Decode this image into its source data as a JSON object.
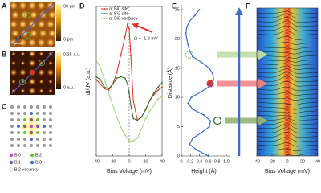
{
  "panel_labels": [
    "A",
    "B",
    "C",
    "D",
    "E",
    "F"
  ],
  "topography": {
    "colorbar_max": "90 pm",
    "colorbar_min": "0 pm",
    "scale_bar": "5 Å"
  },
  "didv_map": {
    "colorbar_max": "0.25 a.u.",
    "colorbar_min": "0 a.u."
  },
  "lattice_legend": [
    {
      "label": "Bi0",
      "color": "#d63fc8"
    },
    {
      "label": "Bi2",
      "color": "#6cbf3a"
    },
    {
      "label": "Bi1",
      "color": "#7b52b8"
    },
    {
      "label": "Bi3",
      "color": "#3b6fd2"
    },
    {
      "label": "Bi2 vacancy",
      "color": "#888888"
    }
  ],
  "chart_data": [
    {
      "type": "line",
      "x_label": "Bias Voltage (mV)",
      "y_label": "dI/dV (a.u.)",
      "annotation": "Ω ~ -1.8 mV",
      "x": [
        -40,
        -35,
        -30,
        -25,
        -20,
        -15,
        -10,
        -5,
        -2,
        0,
        2,
        5,
        10,
        15,
        20,
        25,
        30,
        35,
        40
      ],
      "xlim": [
        -40,
        40
      ],
      "xticks": [
        -40,
        -20,
        0,
        20,
        40
      ],
      "ylim": [
        0,
        1
      ],
      "series": [
        {
          "name": "at Bi0 site",
          "color": "#e0312b",
          "values": [
            0.51,
            0.48,
            0.45,
            0.44,
            0.48,
            0.56,
            0.68,
            0.8,
            0.88,
            0.85,
            0.67,
            0.37,
            0.24,
            0.26,
            0.31,
            0.37,
            0.41,
            0.44,
            0.46
          ]
        },
        {
          "name": "at Bi2 site",
          "color": "#2f6b1f",
          "values": [
            0.53,
            0.51,
            0.46,
            0.45,
            0.48,
            0.52,
            0.53,
            0.52,
            0.48,
            0.42,
            0.34,
            0.25,
            0.24,
            0.26,
            0.31,
            0.37,
            0.42,
            0.46,
            0.49
          ]
        },
        {
          "name": "at Bi2 vacancy",
          "color": "#9fd67a",
          "values": [
            0.64,
            0.59,
            0.51,
            0.42,
            0.34,
            0.26,
            0.19,
            0.14,
            0.12,
            0.1,
            0.1,
            0.1,
            0.12,
            0.18,
            0.25,
            0.3,
            0.34,
            0.38,
            0.4
          ]
        }
      ]
    },
    {
      "type": "profile",
      "x_label": "Height (Å)",
      "y_label": "Distance (Å)",
      "y": [
        25,
        24,
        23,
        22,
        21,
        20,
        19,
        18,
        17,
        16,
        15,
        14,
        13,
        12,
        11,
        10,
        9,
        8,
        7,
        6,
        5,
        4,
        3,
        2,
        1,
        0
      ],
      "color": "#3a6fd0",
      "values": [
        0.4,
        0.3,
        0.18,
        0.12,
        0.1,
        0.12,
        0.15,
        0.18,
        0.25,
        0.45,
        0.62,
        0.7,
        0.72,
        0.65,
        0.45,
        0.22,
        0.15,
        0.25,
        0.5,
        0.65,
        0.62,
        0.45,
        0.25,
        0.18,
        0.35,
        0.6
      ],
      "xlim": [
        0,
        1
      ],
      "xticks": [
        0,
        0.2,
        0.4,
        0.6,
        0.8,
        {
          "value": 1,
          "label": "1.0"
        }
      ],
      "ylim": [
        0,
        25
      ],
      "yticks": [
        0,
        5,
        10,
        15,
        20,
        25
      ]
    }
  ],
  "waterfall": {
    "x_label": "Bias Voltage (mV)",
    "xlim": [
      -40,
      40
    ],
    "xticks": [
      -40,
      -20,
      0,
      20,
      40
    ]
  }
}
